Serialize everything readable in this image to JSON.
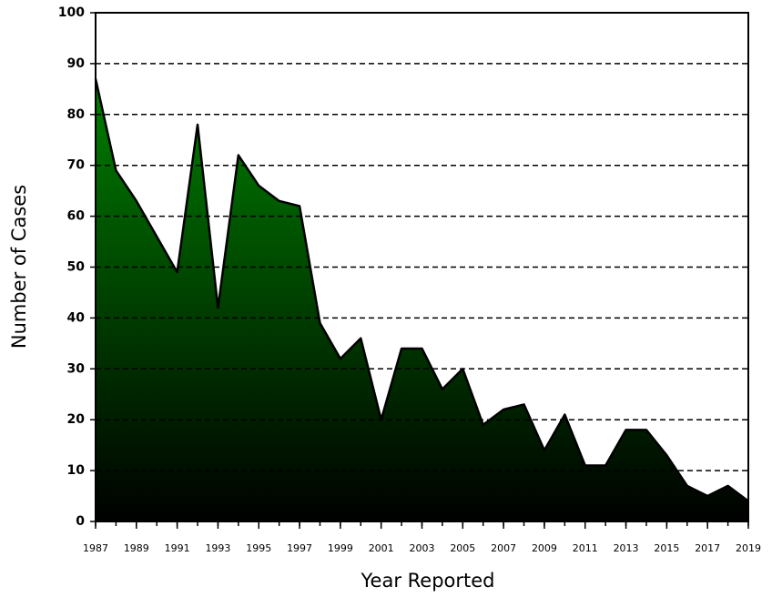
{
  "chart_data": {
    "type": "area",
    "x_label": "Year Reported",
    "y_label": "Number of Cases",
    "x": [
      1987,
      1988,
      1989,
      1990,
      1991,
      1992,
      1993,
      1994,
      1995,
      1996,
      1997,
      1998,
      1999,
      2000,
      2001,
      2002,
      2003,
      2004,
      2005,
      2006,
      2007,
      2008,
      2009,
      2010,
      2011,
      2012,
      2013,
      2014,
      2015,
      2016,
      2017,
      2018,
      2019
    ],
    "values": [
      87,
      69,
      63,
      56,
      49,
      78,
      42,
      72,
      66,
      63,
      62,
      39,
      32,
      36,
      20,
      34,
      34,
      26,
      30,
      19,
      22,
      23,
      14,
      21,
      11,
      11,
      18,
      18,
      13,
      7,
      5,
      7,
      4
    ],
    "color": "#008000",
    "xlim": [
      1987,
      2019
    ],
    "xticks": [
      1987,
      1989,
      1991,
      1993,
      1995,
      1997,
      1999,
      2001,
      2003,
      2005,
      2007,
      2009,
      2011,
      2013,
      2015,
      2017,
      2019
    ],
    "ylim": [
      0,
      100
    ],
    "yticks": [
      0,
      10,
      20,
      30,
      40,
      50,
      60,
      70,
      80,
      90,
      100
    ],
    "grid": true
  }
}
